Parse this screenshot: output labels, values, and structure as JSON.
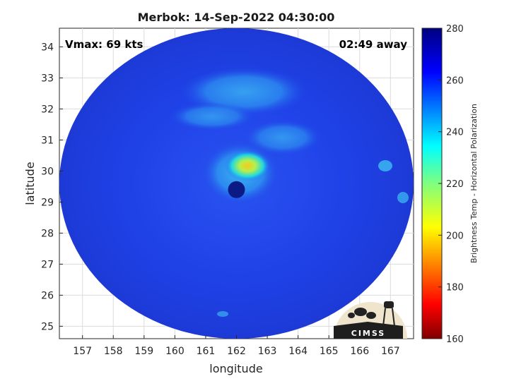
{
  "chart_data": {
    "type": "heatmap",
    "title": "Merbok: 14-Sep-2022 04:30:00",
    "xlabel": "longitude",
    "ylabel": "latitude",
    "xlim": [
      156.25,
      167.75
    ],
    "ylim": [
      24.6,
      34.6
    ],
    "x_ticks": [
      157,
      158,
      159,
      160,
      161,
      162,
      163,
      164,
      165,
      166,
      167
    ],
    "y_ticks": [
      25,
      26,
      27,
      28,
      29,
      30,
      31,
      32,
      33,
      34
    ],
    "grid": true,
    "colorbar": {
      "label": "Brightness Temp - Horizontal Polarization",
      "range": [
        160,
        280
      ],
      "ticks": [
        160,
        180,
        200,
        220,
        240,
        260,
        280
      ],
      "colormap": "jet"
    },
    "swath": {
      "center_lon": 162.0,
      "center_lat": 29.6,
      "radius_deg": 5.75,
      "radius_lat_deg": 5.0
    },
    "storm_center": {
      "lon": 162.0,
      "lat": 29.4
    },
    "annotations": {
      "vmax": "Vmax: 69 kts",
      "time_offset": "02:49 away"
    },
    "logo": "CIMSS"
  },
  "colors": {
    "background_bt": "#1e3ee6",
    "eye": "#0a1a7a",
    "warm_core": "#f5d21a"
  }
}
